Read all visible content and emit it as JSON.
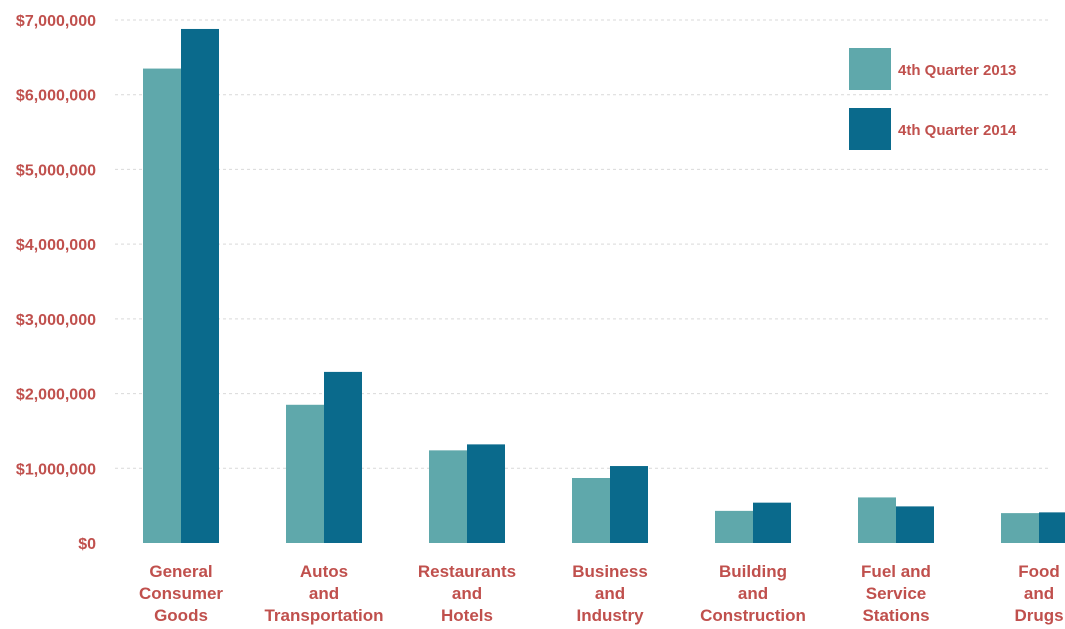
{
  "chart_data": {
    "type": "bar",
    "title": "",
    "xlabel": "",
    "ylabel": "",
    "ylim": [
      0,
      7000000
    ],
    "y_ticks": [
      0,
      1000000,
      2000000,
      3000000,
      4000000,
      5000000,
      6000000,
      7000000
    ],
    "y_tick_labels": [
      "$0",
      "$1,000,000",
      "$2,000,000",
      "$3,000,000",
      "$4,000,000",
      "$5,000,000",
      "$6,000,000",
      "$7,000,000"
    ],
    "grid": true,
    "legend_position": "top-right",
    "categories": [
      [
        "General",
        "Consumer",
        "Goods"
      ],
      [
        "Autos",
        "and",
        "Transportation"
      ],
      [
        "Restaurants",
        "and",
        "Hotels"
      ],
      [
        "Business",
        "and",
        "Industry"
      ],
      [
        "Building",
        "and",
        "Construction"
      ],
      [
        "Fuel and",
        "Service",
        "Stations"
      ],
      [
        "Food",
        "and",
        "Drugs"
      ]
    ],
    "series": [
      {
        "name": "4th Quarter 2013",
        "color": "#5fa8ab",
        "values": [
          6350000,
          1850000,
          1240000,
          870000,
          430000,
          610000,
          400000
        ]
      },
      {
        "name": "4th Quarter 2014",
        "color": "#0a6a8c",
        "values": [
          6880000,
          2290000,
          1320000,
          1030000,
          540000,
          490000,
          410000
        ]
      }
    ]
  }
}
